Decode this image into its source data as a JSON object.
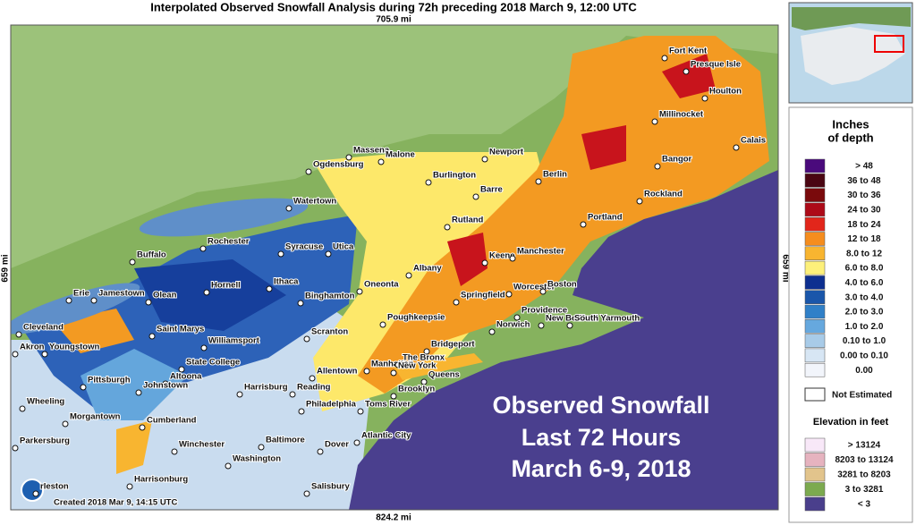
{
  "header": {
    "title": "Interpolated Observed Snowfall Analysis during 72h preceding 2018 March 9, 12:00 UTC"
  },
  "map": {
    "scale_top": "705.9 mi",
    "scale_bottom": "824.2 mi",
    "scale_left": "659 mi",
    "scale_right": "659 mi",
    "credit": "Created 2018 Mar 9, 14:15 UTC",
    "overlay": [
      "Observed Snowfall",
      "Last 72 Hours",
      "March 6-9, 2018"
    ],
    "cities": [
      "Fort Kent",
      "Presque Isle",
      "Houlton",
      "Millinocket",
      "Calais",
      "Bangor",
      "Rockland",
      "Portland",
      "Massena",
      "Malone",
      "Newport",
      "Ogdensburg",
      "Burlington",
      "Berlin",
      "Barre",
      "Watertown",
      "Rutland",
      "Rochester",
      "Syracuse",
      "Utica",
      "Keene",
      "Manchester",
      "Buffalo",
      "Albany",
      "Hornell",
      "Ithaca",
      "Oneonta",
      "Binghamton",
      "Springfield",
      "Worcester",
      "Boston",
      "Erie",
      "Jamestown",
      "Olean",
      "Norwich",
      "Providence",
      "New Bedford",
      "South Yarmouth",
      "Poughkeepsie",
      "Cleveland",
      "Saint Marys",
      "Scranton",
      "Williamsport",
      "Akron",
      "Youngstown",
      "Bridgeport",
      "Manhattan",
      "The Bronx",
      "New York",
      "Queens",
      "Allentown",
      "State College",
      "Pittsburgh",
      "Altoona",
      "Johnstown",
      "Brooklyn",
      "Harrisburg",
      "Reading",
      "Wheeling",
      "Philadelphia",
      "Toms River",
      "Morgantown",
      "Cumberland",
      "Baltimore",
      "Dover",
      "Atlantic City",
      "Parkersburg",
      "Winchester",
      "Washington",
      "Harrisonburg",
      "rleston",
      "Salisbury"
    ]
  },
  "legend": {
    "title": [
      "Inches",
      "of depth"
    ],
    "items": [
      {
        "label": "> 48",
        "color": "#4a0a7c"
      },
      {
        "label": "36 to 48",
        "color": "#4a0612"
      },
      {
        "label": "30 to 36",
        "color": "#7a0a0c"
      },
      {
        "label": "24 to 30",
        "color": "#ad0a18"
      },
      {
        "label": "18 to 24",
        "color": "#e2261b"
      },
      {
        "label": "12 to 18",
        "color": "#f58d1e"
      },
      {
        "label": "8.0 to 12",
        "color": "#f8b530"
      },
      {
        "label": "6.0 to 8.0",
        "color": "#fdf07a"
      },
      {
        "label": "4.0 to 6.0",
        "color": "#0d2f90"
      },
      {
        "label": "3.0 to 4.0",
        "color": "#1a56aa"
      },
      {
        "label": "2.0 to 3.0",
        "color": "#3080c8"
      },
      {
        "label": "1.0 to 2.0",
        "color": "#66a8de"
      },
      {
        "label": "0.10 to 1.0",
        "color": "#a8cbe8"
      },
      {
        "label": "0.00 to 0.10",
        "color": "#d7e6f4"
      },
      {
        "label": "0.00",
        "color": "#f2f5fb"
      }
    ],
    "not_estimated": "Not Estimated",
    "elevation_title": "Elevation in feet",
    "elevation_items": [
      {
        "label": "> 13124",
        "color": "#f8e8f8"
      },
      {
        "label": "8203 to 13124",
        "color": "#e6b3bf"
      },
      {
        "label": "3281 to 8203",
        "color": "#e2c48c"
      },
      {
        "label": "3 to 3281",
        "color": "#7caa4f"
      },
      {
        "label": "< 3",
        "color": "#4a3f8c"
      }
    ]
  }
}
